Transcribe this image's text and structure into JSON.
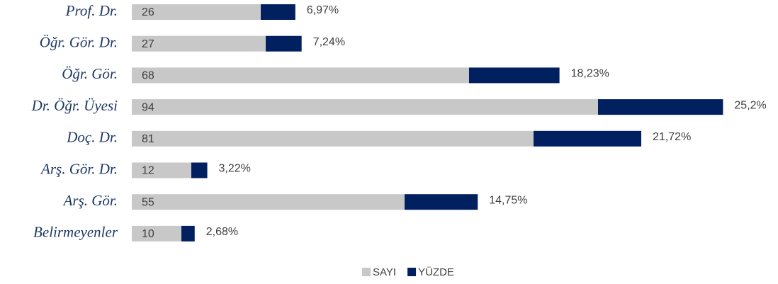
{
  "chart_data": {
    "type": "stacked-bar-horizontal",
    "categories": [
      "Prof. Dr.",
      "Öğr. Gör. Dr.",
      "Öğr. Gör.",
      "Dr. Öğr. Üyesi",
      "Doç. Dr.",
      "Arş. Gör. Dr.",
      "Arş. Gör.",
      "Belirmeyenler"
    ],
    "series": [
      {
        "name": "SAYI",
        "color": "#c8c8c8",
        "values": [
          26,
          27,
          68,
          94,
          81,
          12,
          55,
          10
        ]
      },
      {
        "name": "YÜZDE",
        "color": "#002060",
        "values": [
          6.97,
          7.24,
          18.23,
          25.2,
          21.72,
          3.22,
          14.75,
          2.68
        ],
        "value_labels": [
          "6,97%",
          "7,24%",
          "18,23%",
          "25,2%",
          "21,72%",
          "3,22%",
          "14,75%",
          "2,68%"
        ]
      }
    ],
    "xlim": [
      0,
      130
    ],
    "legend": "bottom"
  }
}
